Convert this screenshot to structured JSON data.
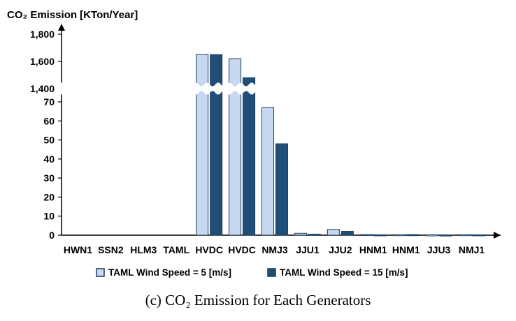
{
  "chart_data": {
    "type": "bar",
    "ylabel": "CO₂ Emission [KTon/Year]",
    "caption": "(c) CO₂ Emission for Each Generators",
    "categories": [
      "HWN1",
      "SSN2",
      "HLM3",
      "TAML",
      "HVDC",
      "HVDC",
      "NMJ3",
      "JJU1",
      "JJU2",
      "HNM1",
      "HNM1",
      "JJU3",
      "NMJ1"
    ],
    "series": [
      {
        "name": "TAML Wind Speed = 5 [m/s]",
        "color": "#c6d9f0",
        "values": [
          0,
          0,
          0,
          0,
          1650,
          1620,
          67,
          1.0,
          3.0,
          0.4,
          0.3,
          0.2,
          0.3
        ]
      },
      {
        "name": "TAML Wind Speed = 15 [m/s]",
        "color": "#1f4e79",
        "values": [
          0,
          0,
          0,
          0,
          1650,
          1480,
          48,
          0.5,
          2.0,
          0.2,
          0.3,
          0.1,
          0.2
        ]
      }
    ],
    "axis_break": {
      "lower_range": [
        0,
        70
      ],
      "upper_range": [
        1400,
        1800
      ]
    },
    "lower_ticks": [
      "0",
      "10",
      "20",
      "30",
      "40",
      "50",
      "60",
      "70"
    ],
    "upper_ticks": [
      "1,400",
      "1,600",
      "1,800"
    ],
    "grid": false,
    "legend_position": "bottom"
  }
}
